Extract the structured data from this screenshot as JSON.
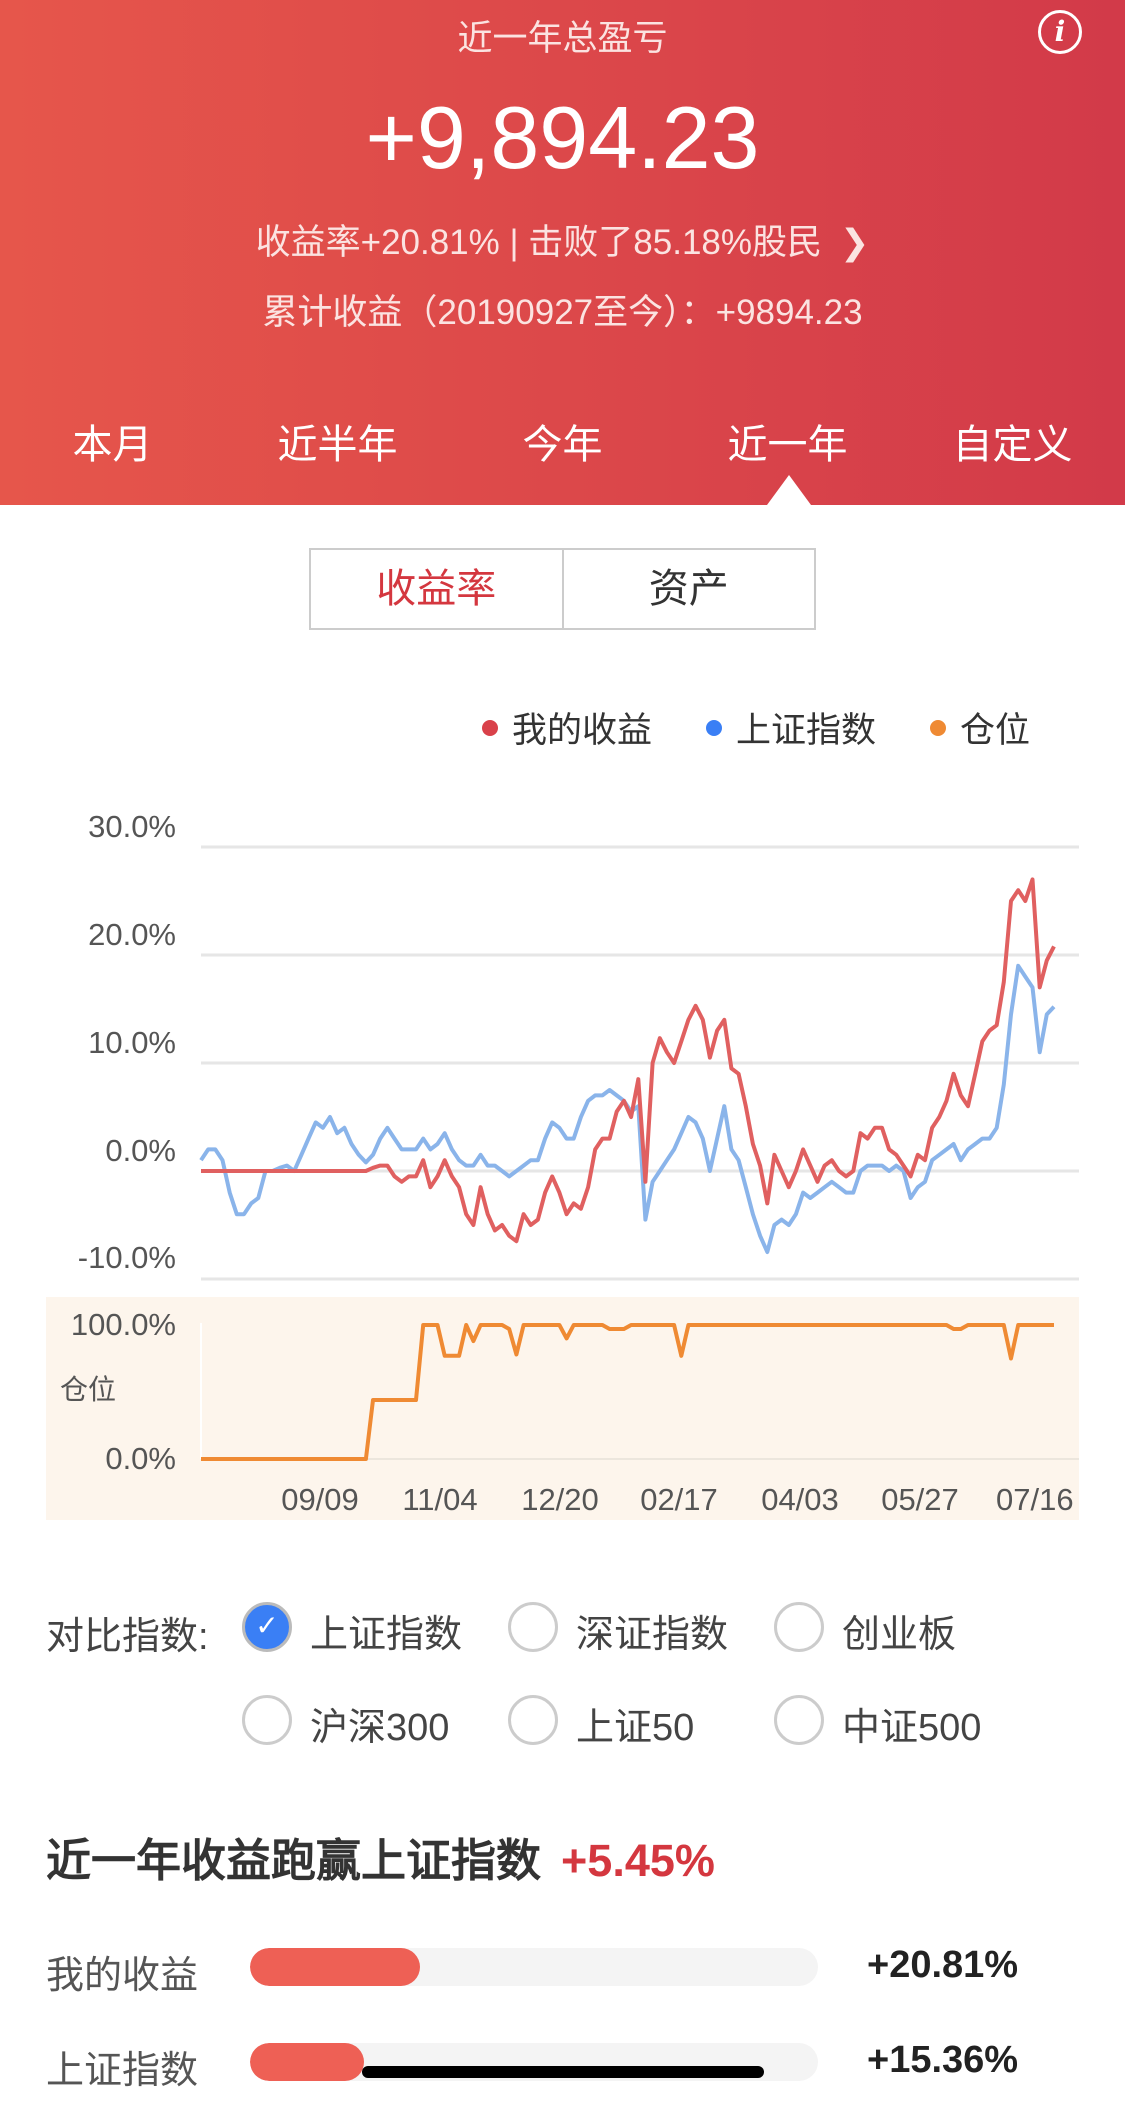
{
  "header": {
    "title": "近一年总盈亏",
    "total": "+9,894.23",
    "rate_line": "收益率+20.81%  |  击败了85.18%股民",
    "cumulative_line": "累计收益（20190927至今）：+9894.23",
    "info_icon": "info-icon",
    "tabs": [
      {
        "label": "本月"
      },
      {
        "label": "近半年"
      },
      {
        "label": "今年"
      },
      {
        "label": "近一年",
        "active": true
      },
      {
        "label": "自定义"
      }
    ]
  },
  "segment": {
    "options": [
      "收益率",
      "资产"
    ],
    "selected": "收益率"
  },
  "legend": [
    {
      "label": "我的收益",
      "color": "#d9414a"
    },
    {
      "label": "上证指数",
      "color": "#3a7ff5"
    },
    {
      "label": "仓位",
      "color": "#ef8a33"
    }
  ],
  "chart_data": [
    {
      "type": "line",
      "ylim": [
        -10,
        30
      ],
      "y_ticks": [
        "30.0%",
        "20.0%",
        "10.0%",
        "0.0%",
        "-10.0%"
      ],
      "y_tick_values": [
        30,
        20,
        10,
        0,
        -10
      ],
      "grid": true,
      "series": [
        {
          "name": "我的收益",
          "color": "#e06060",
          "values": [
            0,
            0,
            0,
            0,
            0,
            0,
            0,
            0,
            0,
            0,
            0,
            0,
            0,
            0,
            0,
            0,
            0,
            0,
            0,
            0,
            0,
            0,
            0,
            0,
            0.3,
            0.5,
            0.5,
            -0.5,
            -1,
            -0.5,
            -0.5,
            1,
            -1.5,
            -0.5,
            1,
            -0.5,
            -1.5,
            -4,
            -5,
            -1.5,
            -4,
            -5.5,
            -5,
            -6,
            -6.5,
            -4,
            -5,
            -4.5,
            -2,
            -0.5,
            -2,
            -4,
            -3,
            -3.5,
            -1.5,
            2,
            3,
            3,
            5.5,
            6.5,
            5,
            8.5,
            -1,
            10,
            12.3,
            11,
            10,
            12,
            14,
            15.3,
            14,
            10.5,
            13,
            14,
            9.5,
            9,
            6,
            2.5,
            0.5,
            -3,
            1.5,
            0,
            -1.5,
            0,
            2,
            0.5,
            -1,
            0.5,
            1,
            0,
            -0.5,
            0,
            3.5,
            3,
            4,
            4,
            2,
            1.5,
            0.5,
            -0.5,
            1.5,
            1,
            4,
            5,
            6.5,
            9,
            7,
            6,
            9,
            12,
            13,
            13.5,
            17.5,
            25,
            26,
            25,
            27,
            17,
            19.5,
            20.8
          ]
        },
        {
          "name": "上证指数",
          "color": "#8ab4ea",
          "values": [
            1,
            2,
            2,
            1,
            -2,
            -4,
            -4,
            -3,
            -2.5,
            0,
            0,
            0.3,
            0.5,
            0,
            1.5,
            3,
            4.5,
            4,
            5,
            3.5,
            4,
            2.5,
            1.5,
            0.8,
            1.5,
            3,
            4,
            3,
            2,
            2,
            2,
            3,
            2,
            2.5,
            3.5,
            2,
            1,
            0.5,
            0.5,
            1.5,
            0.5,
            0.5,
            0,
            -0.5,
            0,
            0.5,
            1,
            1,
            3,
            4.5,
            4,
            3,
            3,
            5,
            6.5,
            7,
            7,
            7.5,
            7,
            6.5,
            5.5,
            6,
            -4.5,
            -1,
            0,
            1,
            2,
            3.5,
            5,
            4.5,
            3,
            0,
            3,
            6,
            2,
            1,
            -1.5,
            -4,
            -6,
            -7.5,
            -5,
            -4.5,
            -5,
            -4,
            -2,
            -2.5,
            -2,
            -1.5,
            -1,
            -1.5,
            -2,
            -2,
            0,
            0.5,
            0.5,
            0.5,
            0,
            0.5,
            0,
            -2.5,
            -1.5,
            -1,
            1,
            1.5,
            2,
            2.5,
            1,
            2,
            2.5,
            3,
            3,
            4,
            8,
            14.5,
            19,
            18,
            17,
            11,
            14.5,
            15.2
          ]
        }
      ]
    },
    {
      "type": "area",
      "ylabel": "仓位",
      "ylim": [
        0,
        100
      ],
      "y_ticks": [
        "100.0%",
        "0.0%"
      ],
      "x_ticks": [
        "09/09",
        "11/04",
        "12/20",
        "02/17",
        "04/03",
        "05/27",
        "07/16"
      ],
      "series": [
        {
          "name": "仓位",
          "color": "#ef8a33",
          "values": [
            0,
            0,
            0,
            0,
            0,
            0,
            0,
            0,
            0,
            0,
            0,
            0,
            0,
            0,
            0,
            0,
            0,
            0,
            0,
            0,
            0,
            0,
            0,
            0,
            44,
            44,
            44,
            44,
            44,
            44,
            44,
            100,
            100,
            100,
            77,
            77,
            77,
            100,
            88,
            100,
            100,
            100,
            100,
            97,
            78,
            100,
            100,
            100,
            100,
            100,
            100,
            90,
            100,
            100,
            100,
            100,
            100,
            97,
            97,
            97,
            100,
            100,
            100,
            100,
            100,
            100,
            100,
            77,
            100,
            100,
            100,
            100,
            100,
            100,
            100,
            100,
            100,
            100,
            100,
            100,
            100,
            100,
            100,
            100,
            100,
            100,
            100,
            100,
            100,
            100,
            100,
            100,
            100,
            100,
            100,
            100,
            100,
            100,
            100,
            100,
            100,
            100,
            100,
            100,
            100,
            97,
            97,
            100,
            100,
            100,
            100,
            100,
            100,
            75,
            100,
            100,
            100,
            100,
            100,
            100
          ]
        }
      ]
    }
  ],
  "compare": {
    "label": "对比指数:",
    "options": [
      {
        "label": "上证指数",
        "checked": true
      },
      {
        "label": "深证指数",
        "checked": false
      },
      {
        "label": "创业板",
        "checked": false
      },
      {
        "label": "沪深300",
        "checked": false
      },
      {
        "label": "上证50",
        "checked": false
      },
      {
        "label": "中证500",
        "checked": false
      }
    ],
    "check_icon": "checkmark-icon"
  },
  "summary": {
    "title": "近一年收益跑赢上证指数",
    "diff": "+5.45%",
    "bars": [
      {
        "label": "我的收益",
        "value": "+20.81%",
        "fill": 0.3
      },
      {
        "label": "上证指数",
        "value": "+15.36%",
        "fill": 0.2
      }
    ]
  }
}
